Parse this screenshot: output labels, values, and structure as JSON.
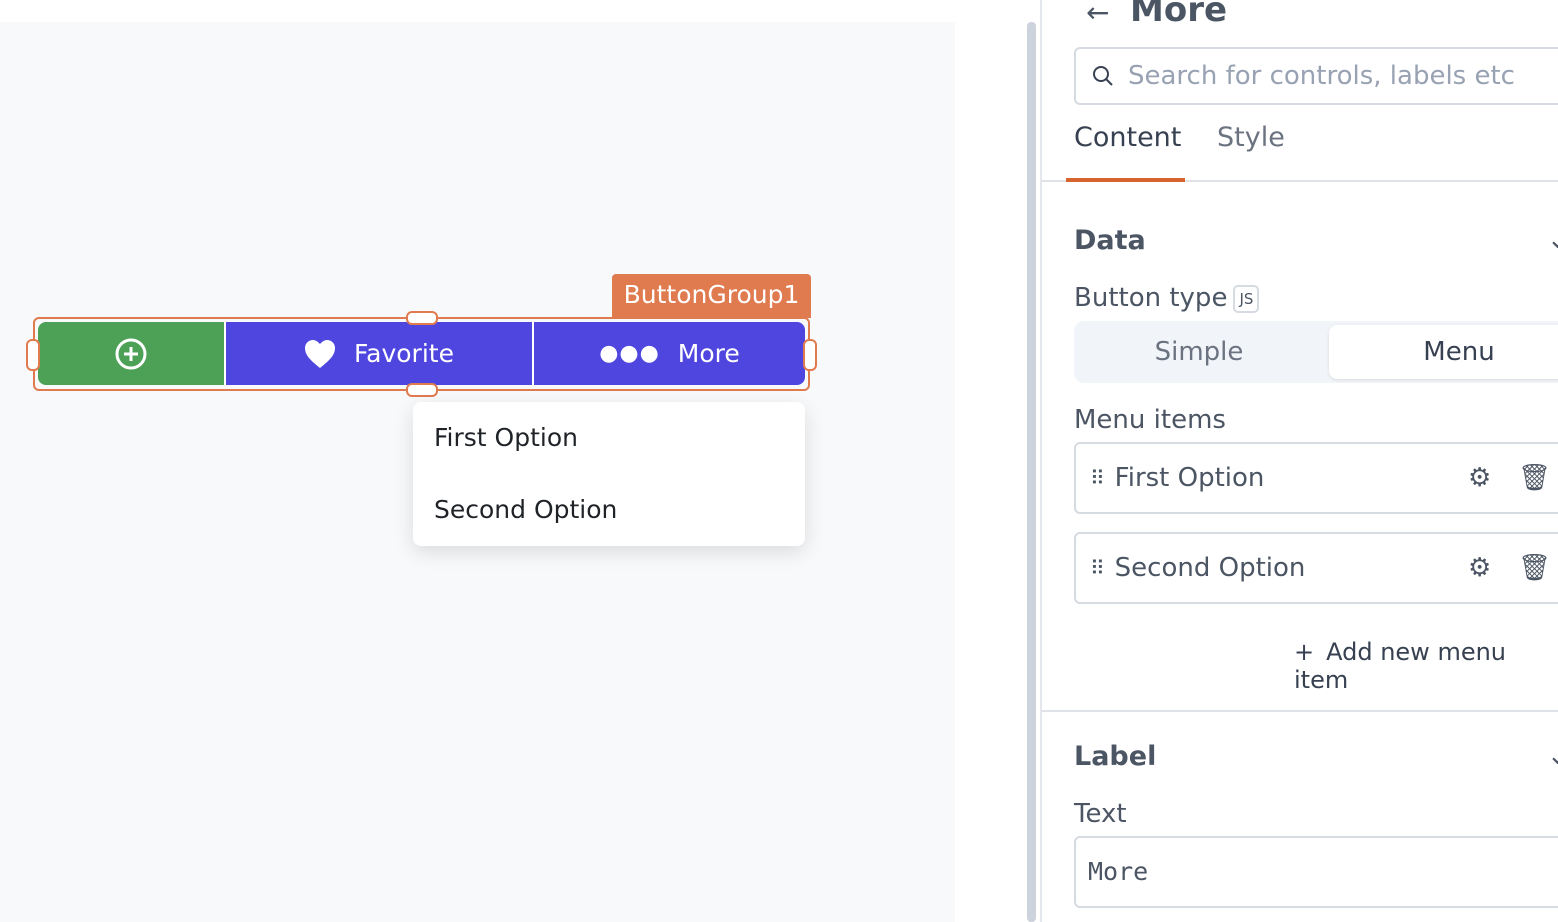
{
  "canvas": {
    "widget_name": "ButtonGroup1",
    "buttons": [
      {
        "icon": "plus-circle-icon",
        "label": ""
      },
      {
        "icon": "heart-icon",
        "label": "Favorite"
      },
      {
        "icon": "more-dots-icon",
        "label": "More"
      }
    ],
    "menu": [
      "First Option",
      "Second Option"
    ],
    "colors": {
      "green": "#4ca157",
      "purple": "#4f46e0",
      "selection": "#e07a4f"
    }
  },
  "panel": {
    "title": "More",
    "search_placeholder": "Search for controls, labels etc",
    "tabs": [
      "Content",
      "Style"
    ],
    "active_tab": "Content",
    "data_section": "Data",
    "button_type_label": "Button type",
    "js_badge": "JS",
    "button_types": [
      "Simple",
      "Menu"
    ],
    "selected_type": "Menu",
    "menu_items_label": "Menu items",
    "menu_items": [
      "First Option",
      "Second Option"
    ],
    "add_item": "Add new menu item",
    "label_section": "Label",
    "text_label": "Text",
    "text_value": "More"
  }
}
